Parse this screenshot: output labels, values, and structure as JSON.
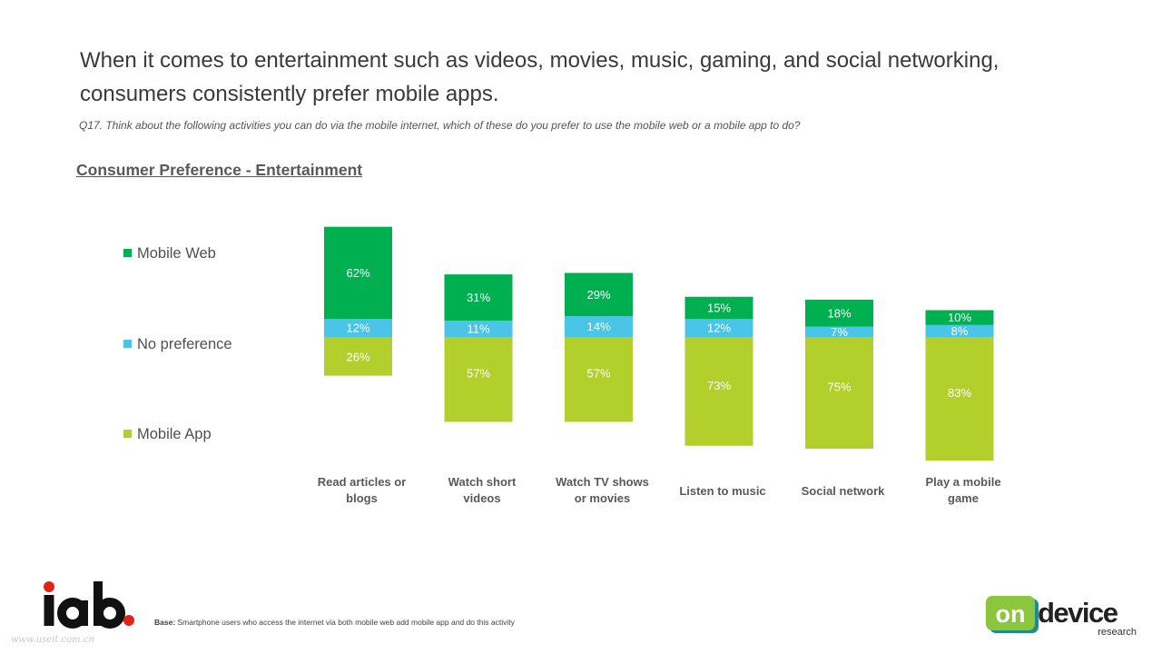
{
  "header": {
    "headline_line1": "When it comes to entertainment such as videos, movies, music, gaming, and social networking,",
    "headline_line2": "consumers consistently prefer mobile apps.",
    "question": "Q17. Think about the following activities you can do via the mobile internet, which of these do you prefer to use the mobile web or a mobile app to do?"
  },
  "colors": {
    "mobile_web": "#00B050",
    "no_preference": "#4AC5E8",
    "mobile_app": "#B3CF2C"
  },
  "chart_data": {
    "type": "bar",
    "stacked": true,
    "title": "Consumer Preference - Entertainment",
    "categories": [
      [
        "Read articles or",
        "blogs"
      ],
      [
        "Watch short",
        "videos"
      ],
      [
        "Watch TV shows",
        "or movies"
      ],
      [
        "Listen to music"
      ],
      [
        "Social network"
      ],
      [
        "Play a mobile",
        "game"
      ]
    ],
    "series": [
      {
        "name": "Mobile Web",
        "values": [
          62,
          31,
          29,
          15,
          18,
          10
        ],
        "labels": [
          "62%",
          "31%",
          "29%",
          "15%",
          "18%",
          "10%"
        ]
      },
      {
        "name": "No preference",
        "values": [
          12,
          11,
          14,
          12,
          7,
          8
        ],
        "labels": [
          "12%",
          "11%",
          "14%",
          "12%",
          "7%",
          "8%"
        ]
      },
      {
        "name": "Mobile App",
        "values": [
          26,
          57,
          57,
          73,
          75,
          83
        ],
        "labels": [
          "26%",
          "57%",
          "57%",
          "73%",
          "75%",
          "83%"
        ]
      }
    ],
    "legend_position": "left",
    "grid": false,
    "axes_visible": false
  },
  "footer": {
    "base_label": "Base:",
    "base_text": " Smartphone users who access the internet via both mobile web add mobile app and do this activity",
    "logo_iab": "iab",
    "logo_on": "on",
    "logo_device": "device",
    "logo_research": "research",
    "watermark": "www.useit.com.cn"
  }
}
